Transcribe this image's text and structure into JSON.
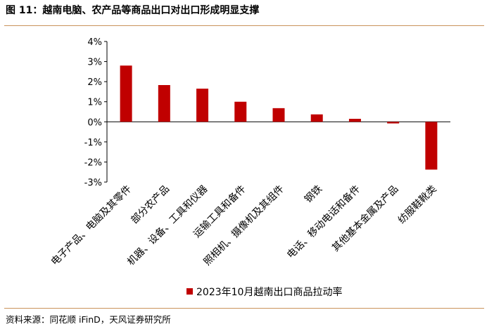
{
  "header": {
    "title": "图 11：越南电脑、农产品等商品出口对出口形成明显支撑"
  },
  "footer": {
    "source": "资料来源：同花顺 iFinD，天风证券研究所"
  },
  "chart_data": {
    "type": "bar",
    "title": "",
    "xlabel": "",
    "ylabel": "",
    "categories": [
      "电子产品、电脑及其零件",
      "部分农产品",
      "机器、设备、工具和仪器",
      "运输工具和备件",
      "照相机、摄像机及其组件",
      "钢铁",
      "电话、移动电话和备件",
      "其他基本金属及产品",
      "纺服鞋靴类"
    ],
    "series": [
      {
        "name": "2023年10月越南出口商品拉动率",
        "values": [
          2.8,
          1.83,
          1.65,
          1.0,
          0.68,
          0.37,
          0.15,
          -0.08,
          -2.38
        ],
        "color": "#c00000"
      }
    ],
    "ylim": [
      -3,
      4
    ],
    "yticks": [
      "-3%",
      "-2%",
      "-1%",
      "0%",
      "1%",
      "2%",
      "3%",
      "4%"
    ],
    "grid": false,
    "legend_position": "bottom"
  }
}
